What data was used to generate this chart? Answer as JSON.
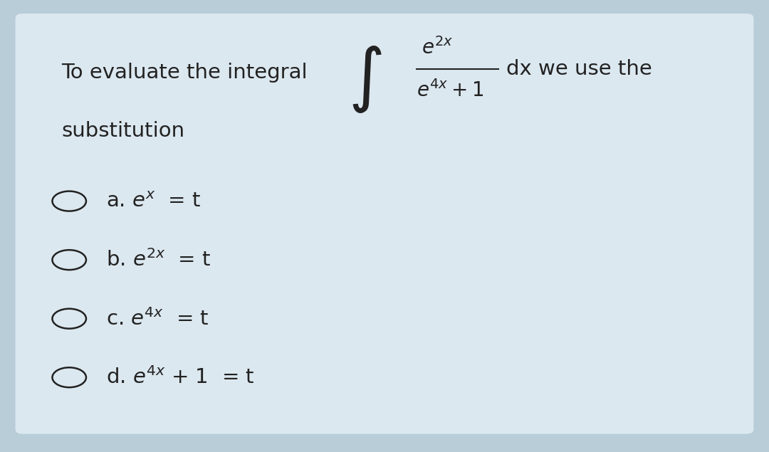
{
  "bg_color": "#dce8f0",
  "outer_bg": "#b8cdd8",
  "text_color": "#222222",
  "figsize": [
    10.8,
    6.35
  ],
  "dpi": 100,
  "option_labels": [
    "a.",
    "b.",
    "c.",
    "d."
  ],
  "option_exprs": [
    "$e^{x}$  = t",
    "$e^{2x}$  = t",
    "$e^{4x}$  = t",
    "$e^{4x}$ + 1  = t"
  ]
}
